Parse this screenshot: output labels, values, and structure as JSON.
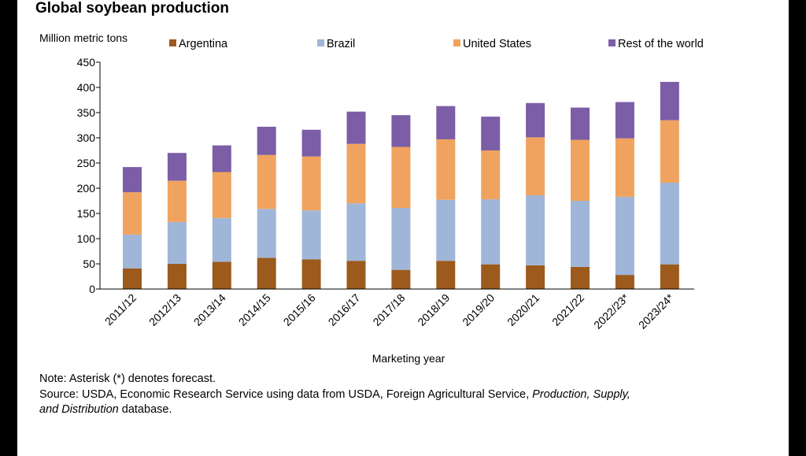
{
  "chart_data": {
    "type": "bar",
    "stacked": true,
    "title": "Global soybean production",
    "ylabel": "Million metric tons",
    "xlabel": "Marketing year",
    "ylim": [
      0,
      450
    ],
    "yticks": [
      0,
      50,
      100,
      150,
      200,
      250,
      300,
      350,
      400,
      450
    ],
    "categories": [
      "2011/12",
      "2012/13",
      "2013/14",
      "2014/15",
      "2015/16",
      "2016/17",
      "2017/18",
      "2018/19",
      "2019/20",
      "2020/21",
      "2021/22",
      "2022/23*",
      "2023/24*"
    ],
    "series": [
      {
        "name": "Argentina",
        "color": "#9c5a1c",
        "values": [
          41,
          50,
          54,
          62,
          59,
          56,
          38,
          56,
          49,
          47,
          44,
          28,
          49
        ]
      },
      {
        "name": "Brazil",
        "color": "#9fb6d8",
        "values": [
          67,
          83,
          87,
          97,
          97,
          114,
          123,
          121,
          129,
          139,
          131,
          155,
          162
        ]
      },
      {
        "name": "United States",
        "color": "#f0a35f",
        "values": [
          84,
          82,
          91,
          107,
          107,
          118,
          121,
          120,
          97,
          115,
          121,
          116,
          124
        ]
      },
      {
        "name": "Rest of the world",
        "color": "#7b5ea6",
        "values": [
          50,
          55,
          53,
          56,
          53,
          64,
          63,
          66,
          67,
          68,
          64,
          72,
          76
        ]
      }
    ]
  },
  "note": {
    "line1": "Note: Asterisk (*) denotes forecast.",
    "line2": "Source: USDA, Economic Research Service using data from USDA, Foreign Agricultural Service, ",
    "line2_italic": "Production, Supply,",
    "line3_italic": "and Distribution",
    "line3": " database."
  }
}
